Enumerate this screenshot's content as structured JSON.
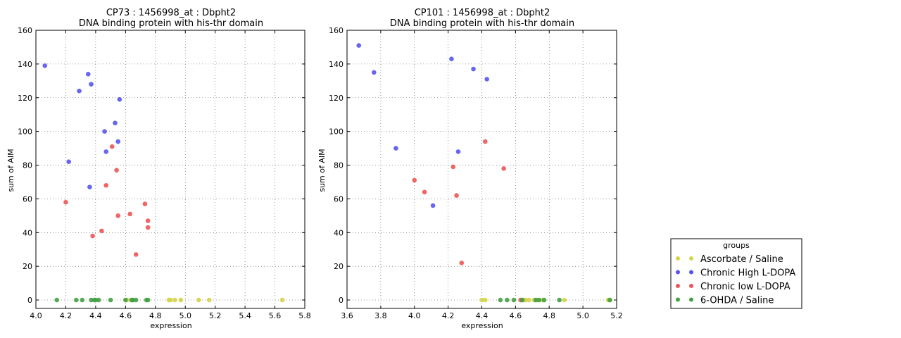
{
  "chart_data": [
    {
      "type": "scatter",
      "title": "CP73 : 1456998_at : Dbpht2",
      "subtitle": "DNA binding protein with his-thr domain",
      "xlabel": "expression",
      "ylabel": "sum of AIM",
      "xlim": [
        4.0,
        5.8
      ],
      "ylim": [
        -5,
        160
      ],
      "xticks": [
        "4.0",
        "4.2",
        "4.4",
        "4.6",
        "4.8",
        "5.0",
        "5.2",
        "5.4",
        "5.6",
        "5.8"
      ],
      "yticks": [
        "0",
        "20",
        "40",
        "60",
        "80",
        "100",
        "120",
        "140",
        "160"
      ],
      "grid": true,
      "series": [
        {
          "name": "Ascorbate / Saline",
          "points": [
            [
              4.61,
              0
            ],
            [
              4.65,
              0
            ],
            [
              4.89,
              0
            ],
            [
              4.9,
              0
            ],
            [
              4.93,
              0
            ],
            [
              4.97,
              0
            ],
            [
              5.09,
              0
            ],
            [
              5.16,
              0
            ],
            [
              5.65,
              0
            ]
          ]
        },
        {
          "name": "Chronic High L-DOPA",
          "points": [
            [
              4.06,
              139
            ],
            [
              4.22,
              82
            ],
            [
              4.29,
              124
            ],
            [
              4.35,
              134
            ],
            [
              4.36,
              67
            ],
            [
              4.37,
              128
            ],
            [
              4.46,
              100
            ],
            [
              4.47,
              88
            ],
            [
              4.53,
              105
            ],
            [
              4.55,
              94
            ],
            [
              4.56,
              119
            ]
          ]
        },
        {
          "name": "Chronic low L-DOPA",
          "points": [
            [
              4.2,
              58
            ],
            [
              4.38,
              38
            ],
            [
              4.44,
              41
            ],
            [
              4.47,
              68
            ],
            [
              4.51,
              91
            ],
            [
              4.54,
              77
            ],
            [
              4.55,
              50
            ],
            [
              4.63,
              51
            ],
            [
              4.67,
              27
            ],
            [
              4.73,
              57
            ],
            [
              4.75,
              47
            ],
            [
              4.75,
              43
            ]
          ]
        },
        {
          "name": "6-OHDA / Saline",
          "points": [
            [
              4.14,
              0
            ],
            [
              4.27,
              0
            ],
            [
              4.31,
              0
            ],
            [
              4.37,
              0
            ],
            [
              4.39,
              0
            ],
            [
              4.4,
              0
            ],
            [
              4.42,
              0
            ],
            [
              4.5,
              0
            ],
            [
              4.6,
              0
            ],
            [
              4.64,
              0
            ],
            [
              4.65,
              0
            ],
            [
              4.67,
              0
            ],
            [
              4.74,
              0
            ],
            [
              4.75,
              0
            ]
          ]
        }
      ]
    },
    {
      "type": "scatter",
      "title": "CP101 : 1456998_at : Dbpht2",
      "subtitle": "DNA binding protein with his-thr domain",
      "xlabel": "expression",
      "ylabel": "sum of AIM",
      "xlim": [
        3.6,
        5.2
      ],
      "ylim": [
        -5,
        160
      ],
      "xticks": [
        "3.6",
        "3.8",
        "4.0",
        "4.2",
        "4.4",
        "4.6",
        "4.8",
        "5.0",
        "5.2"
      ],
      "yticks": [
        "0",
        "20",
        "40",
        "60",
        "80",
        "100",
        "120",
        "140",
        "160"
      ],
      "grid": true,
      "series": [
        {
          "name": "Ascorbate / Saline",
          "points": [
            [
              4.4,
              0
            ],
            [
              4.42,
              0
            ],
            [
              4.65,
              0
            ],
            [
              4.66,
              0
            ],
            [
              4.68,
              0
            ],
            [
              4.71,
              0
            ],
            [
              4.73,
              0
            ],
            [
              4.76,
              0
            ],
            [
              4.89,
              0
            ],
            [
              5.15,
              0
            ],
            [
              5.16,
              0
            ]
          ]
        },
        {
          "name": "Chronic High L-DOPA",
          "points": [
            [
              3.67,
              151
            ],
            [
              3.76,
              135
            ],
            [
              3.89,
              90
            ],
            [
              4.11,
              56
            ],
            [
              4.22,
              143
            ],
            [
              4.26,
              88
            ],
            [
              4.35,
              137
            ],
            [
              4.43,
              131
            ]
          ]
        },
        {
          "name": "Chronic low L-DOPA",
          "points": [
            [
              4.0,
              71
            ],
            [
              4.06,
              64
            ],
            [
              4.23,
              79
            ],
            [
              4.25,
              62
            ],
            [
              4.28,
              22
            ],
            [
              4.42,
              94
            ],
            [
              4.53,
              78
            ],
            [
              4.63,
              0
            ]
          ]
        },
        {
          "name": "6-OHDA / Saline",
          "points": [
            [
              4.51,
              0
            ],
            [
              4.55,
              0
            ],
            [
              4.59,
              0
            ],
            [
              4.64,
              0
            ],
            [
              4.72,
              0
            ],
            [
              4.74,
              0
            ],
            [
              4.77,
              0
            ],
            [
              4.86,
              0
            ],
            [
              5.16,
              0
            ]
          ]
        }
      ]
    }
  ],
  "legend": {
    "title": "groups",
    "placement": "lower-right outside",
    "entries": [
      "Ascorbate / Saline",
      "Chronic High L-DOPA",
      "Chronic low L-DOPA",
      "6-OHDA / Saline"
    ]
  },
  "colors": {
    "Ascorbate / Saline": "#d4d44a",
    "Chronic High L-DOPA": "#5555ee",
    "Chronic low L-DOPA": "#ee5555",
    "6-OHDA / Saline": "#44a044"
  }
}
